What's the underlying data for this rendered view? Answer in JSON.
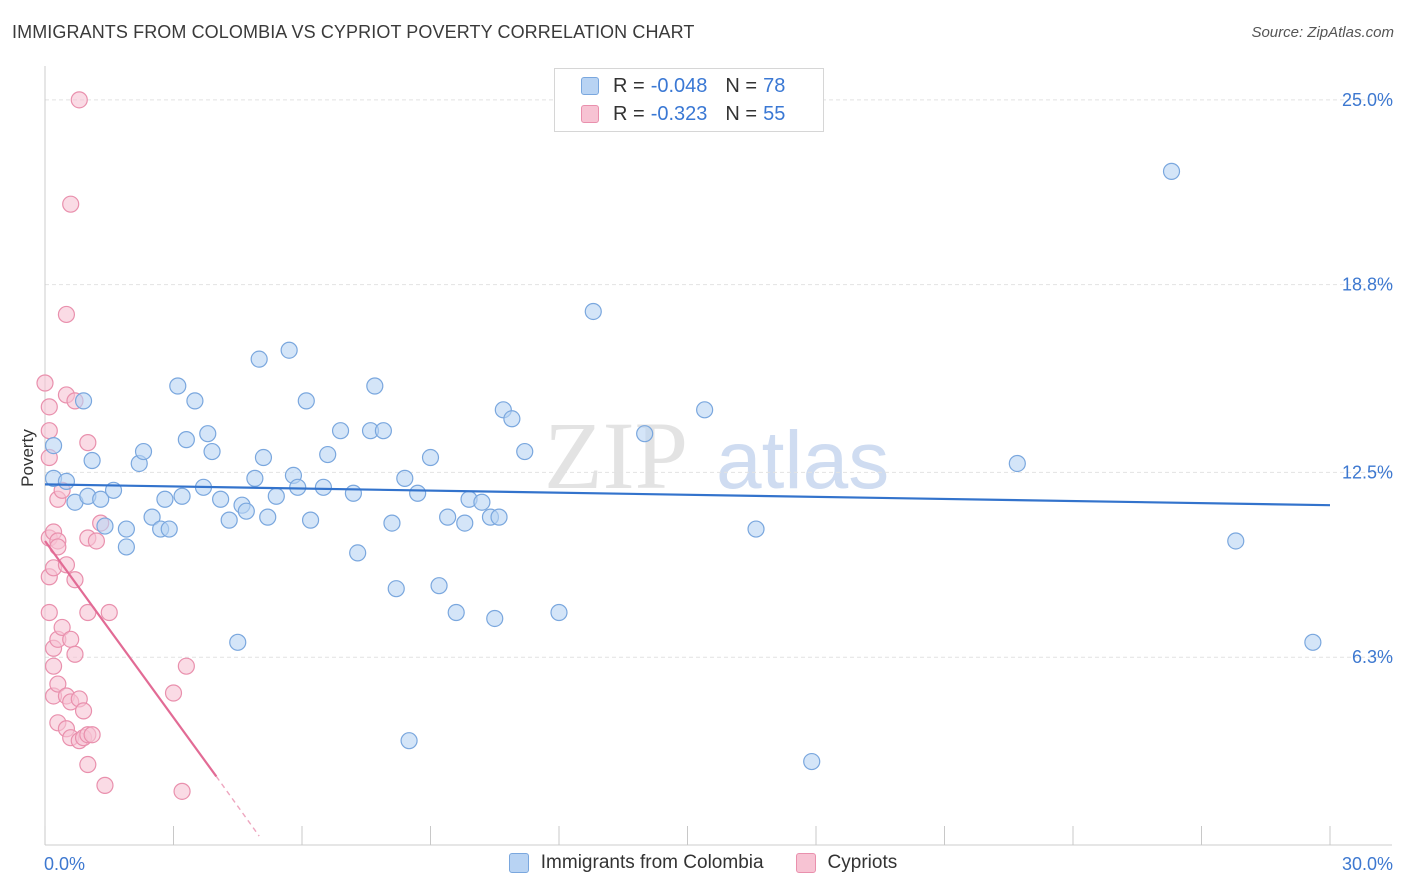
{
  "header": {
    "title": "IMMIGRANTS FROM COLOMBIA VS CYPRIOT POVERTY CORRELATION CHART",
    "source": "Source: ZipAtlas.com"
  },
  "legend": {
    "series1": {
      "r_label": "R =",
      "r_value": "-0.048",
      "n_label": "N =",
      "n_value": "78",
      "name": "Immigrants from Colombia"
    },
    "series2": {
      "r_label": "R =",
      "r_value": "-0.323",
      "n_label": "N =",
      "n_value": "55",
      "name": "Cypriots"
    }
  },
  "colors": {
    "blue_fill": "#b8d3f3",
    "blue_stroke": "#7aa7de",
    "blue_line": "#3373cc",
    "pink_fill": "#f7c3d3",
    "pink_stroke": "#e990ad",
    "pink_line": "#e26b95",
    "grid": "#e2e2e2",
    "axis_label": "#3d78d0"
  },
  "chart_data": {
    "type": "scatter",
    "title": "IMMIGRANTS FROM COLOMBIA VS CYPRIOT POVERTY CORRELATION CHART",
    "xlabel": "",
    "ylabel": "Poverty",
    "xlim": [
      0,
      30
    ],
    "ylim": [
      0,
      25.8
    ],
    "x_tick_labels": [
      {
        "value": 0,
        "label": "0.0%"
      },
      {
        "value": 30,
        "label": "30.0%"
      }
    ],
    "y_tick_labels": [
      {
        "value": 6.3,
        "label": "6.3%"
      },
      {
        "value": 12.5,
        "label": "12.5%"
      },
      {
        "value": 18.8,
        "label": "18.8%"
      },
      {
        "value": 25.0,
        "label": "25.0%"
      }
    ],
    "watermark": {
      "part1": "ZIP",
      "part2": "atlas"
    },
    "series": [
      {
        "name": "Immigrants from Colombia",
        "color": "blue",
        "trend": [
          [
            0,
            12.1
          ],
          [
            30,
            11.4
          ]
        ],
        "points": [
          [
            0.2,
            13.4
          ],
          [
            0.2,
            12.3
          ],
          [
            0.5,
            12.2
          ],
          [
            0.7,
            11.5
          ],
          [
            0.9,
            14.9
          ],
          [
            1.0,
            11.7
          ],
          [
            1.1,
            12.9
          ],
          [
            1.3,
            11.6
          ],
          [
            1.4,
            10.7
          ],
          [
            1.6,
            11.9
          ],
          [
            1.9,
            10.6
          ],
          [
            1.9,
            10.0
          ],
          [
            2.2,
            12.8
          ],
          [
            2.3,
            13.2
          ],
          [
            2.5,
            11.0
          ],
          [
            2.7,
            10.6
          ],
          [
            2.8,
            11.6
          ],
          [
            2.9,
            10.6
          ],
          [
            3.1,
            15.4
          ],
          [
            3.2,
            11.7
          ],
          [
            3.3,
            13.6
          ],
          [
            3.5,
            14.9
          ],
          [
            3.7,
            12.0
          ],
          [
            3.8,
            13.8
          ],
          [
            3.9,
            13.2
          ],
          [
            4.1,
            11.6
          ],
          [
            4.3,
            10.9
          ],
          [
            4.5,
            6.8
          ],
          [
            4.6,
            11.4
          ],
          [
            4.7,
            11.2
          ],
          [
            4.9,
            12.3
          ],
          [
            5.0,
            16.3
          ],
          [
            5.1,
            13.0
          ],
          [
            5.2,
            11.0
          ],
          [
            5.4,
            11.7
          ],
          [
            5.7,
            16.6
          ],
          [
            5.8,
            12.4
          ],
          [
            5.9,
            12.0
          ],
          [
            6.1,
            14.9
          ],
          [
            6.2,
            10.9
          ],
          [
            6.5,
            12.0
          ],
          [
            6.6,
            13.1
          ],
          [
            6.9,
            13.9
          ],
          [
            7.2,
            11.8
          ],
          [
            7.3,
            9.8
          ],
          [
            7.6,
            13.9
          ],
          [
            7.7,
            15.4
          ],
          [
            7.9,
            13.9
          ],
          [
            8.1,
            10.8
          ],
          [
            8.2,
            8.6
          ],
          [
            8.4,
            12.3
          ],
          [
            8.5,
            3.5
          ],
          [
            8.7,
            11.8
          ],
          [
            9.0,
            13.0
          ],
          [
            9.2,
            8.7
          ],
          [
            9.4,
            11.0
          ],
          [
            9.6,
            7.8
          ],
          [
            9.8,
            10.8
          ],
          [
            9.9,
            11.6
          ],
          [
            10.2,
            11.5
          ],
          [
            10.4,
            11.0
          ],
          [
            10.5,
            7.6
          ],
          [
            10.6,
            11.0
          ],
          [
            10.7,
            14.6
          ],
          [
            10.9,
            14.3
          ],
          [
            11.2,
            13.2
          ],
          [
            12.0,
            7.8
          ],
          [
            12.8,
            17.9
          ],
          [
            14.0,
            13.8
          ],
          [
            15.4,
            14.6
          ],
          [
            16.6,
            10.6
          ],
          [
            17.9,
            2.8
          ],
          [
            22.7,
            12.8
          ],
          [
            26.3,
            22.6
          ],
          [
            27.8,
            10.2
          ],
          [
            29.6,
            6.8
          ]
        ]
      },
      {
        "name": "Cypriots",
        "color": "pink",
        "trend": [
          [
            0,
            10.2
          ],
          [
            4.0,
            2.3
          ]
        ],
        "trend_dashed": [
          [
            4.0,
            2.3
          ],
          [
            5.0,
            0.3
          ]
        ],
        "points": [
          [
            0.0,
            15.5
          ],
          [
            0.1,
            14.7
          ],
          [
            0.1,
            13.9
          ],
          [
            0.1,
            13.0
          ],
          [
            0.1,
            10.3
          ],
          [
            0.1,
            9.0
          ],
          [
            0.1,
            7.8
          ],
          [
            0.2,
            10.5
          ],
          [
            0.2,
            9.3
          ],
          [
            0.2,
            6.6
          ],
          [
            0.2,
            6.0
          ],
          [
            0.2,
            5.0
          ],
          [
            0.3,
            11.6
          ],
          [
            0.3,
            10.2
          ],
          [
            0.3,
            10.0
          ],
          [
            0.3,
            6.9
          ],
          [
            0.3,
            5.4
          ],
          [
            0.3,
            4.1
          ],
          [
            0.4,
            11.9
          ],
          [
            0.4,
            7.3
          ],
          [
            0.5,
            17.8
          ],
          [
            0.5,
            15.1
          ],
          [
            0.5,
            9.4
          ],
          [
            0.5,
            5.0
          ],
          [
            0.5,
            3.9
          ],
          [
            0.6,
            21.5
          ],
          [
            0.6,
            6.9
          ],
          [
            0.6,
            4.8
          ],
          [
            0.6,
            3.6
          ],
          [
            0.7,
            14.9
          ],
          [
            0.7,
            8.9
          ],
          [
            0.7,
            6.4
          ],
          [
            0.8,
            25.0
          ],
          [
            0.8,
            4.9
          ],
          [
            0.8,
            3.5
          ],
          [
            0.9,
            4.5
          ],
          [
            0.9,
            3.6
          ],
          [
            1.0,
            2.7
          ],
          [
            1.0,
            3.7
          ],
          [
            1.0,
            7.8
          ],
          [
            1.0,
            10.3
          ],
          [
            1.0,
            13.5
          ],
          [
            1.1,
            3.7
          ],
          [
            1.2,
            10.2
          ],
          [
            1.3,
            10.8
          ],
          [
            1.4,
            2.0
          ],
          [
            1.5,
            7.8
          ],
          [
            3.0,
            5.1
          ],
          [
            3.2,
            1.8
          ],
          [
            3.3,
            6.0
          ]
        ]
      }
    ]
  }
}
